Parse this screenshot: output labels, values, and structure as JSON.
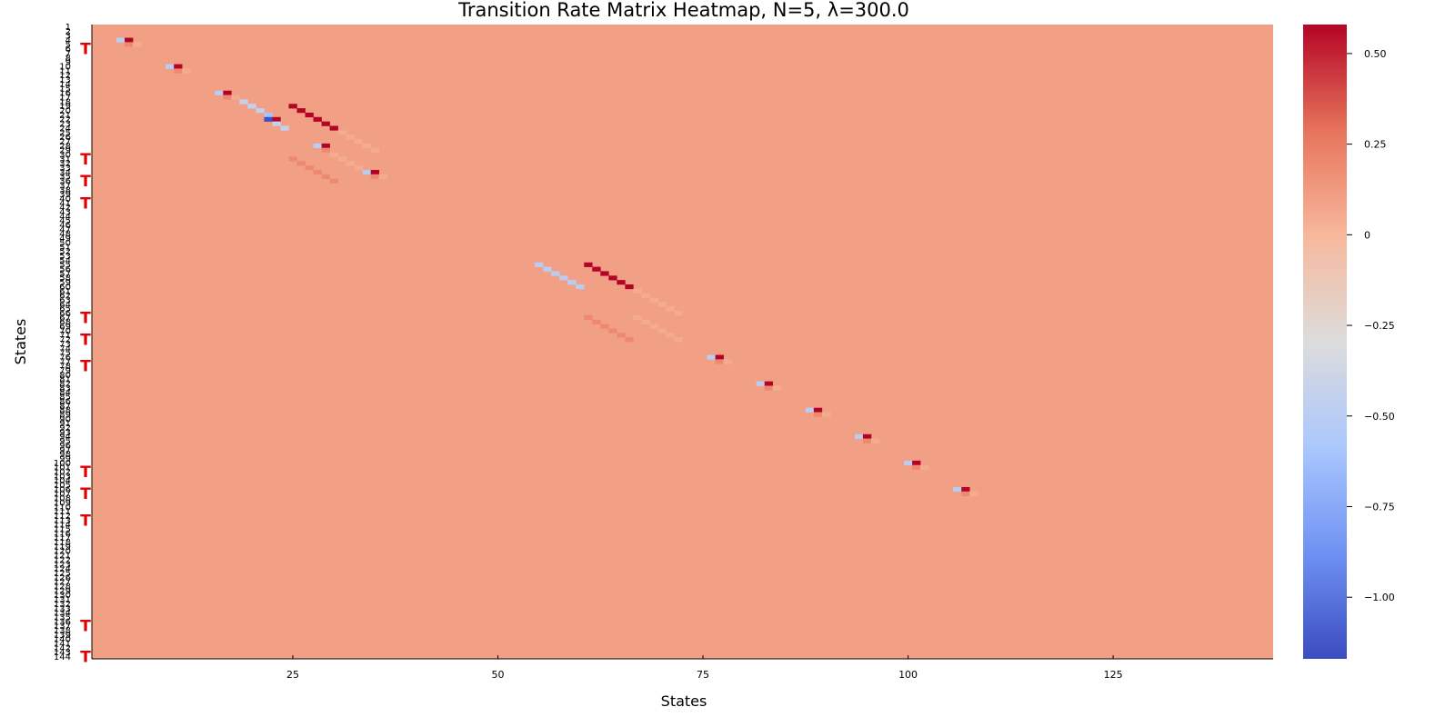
{
  "chart_data": {
    "type": "heatmap",
    "title": "Transition Rate Matrix Heatmap, N=5, λ=300.0",
    "xlabel": "States",
    "ylabel": "States",
    "n_states": 144,
    "xlim": [
      1,
      144
    ],
    "x_ticks": [
      25,
      50,
      75,
      100,
      125
    ],
    "y_ticks_all_states": true,
    "background_value": 0.1,
    "colorbar": {
      "range": [
        -1.17,
        0.58
      ],
      "ticks": [
        0.5,
        0.25,
        0,
        -0.25,
        -0.5,
        -0.75,
        -1.0
      ],
      "tick_labels": [
        "0.50",
        "0.25",
        "0",
        "−0.25",
        "−0.50",
        "−0.75",
        "−1.00"
      ],
      "colormap": "coolwarm",
      "stops": [
        "#3b4cc0",
        "#6f92f3",
        "#aac7fd",
        "#dddcdc",
        "#f7b89c",
        "#e7745b",
        "#b40426"
      ]
    },
    "cells": [
      [
        4,
        4,
        -0.5
      ],
      [
        4,
        5,
        0.58
      ],
      [
        5,
        5,
        0.2
      ],
      [
        5,
        6,
        0.05
      ],
      [
        10,
        10,
        -0.5
      ],
      [
        10,
        11,
        0.58
      ],
      [
        11,
        11,
        0.2
      ],
      [
        11,
        12,
        0.05
      ],
      [
        16,
        16,
        -0.5
      ],
      [
        16,
        17,
        0.58
      ],
      [
        17,
        17,
        0.2
      ],
      [
        17,
        18,
        0.05
      ],
      [
        18,
        19,
        -0.45
      ],
      [
        19,
        20,
        -0.45
      ],
      [
        20,
        21,
        -0.45
      ],
      [
        21,
        22,
        -0.6
      ],
      [
        22,
        23,
        -0.6
      ],
      [
        19,
        25,
        0.58
      ],
      [
        20,
        26,
        0.58
      ],
      [
        21,
        27,
        0.58
      ],
      [
        22,
        28,
        0.58
      ],
      [
        23,
        29,
        0.58
      ],
      [
        24,
        30,
        0.58
      ],
      [
        22,
        22,
        -1.15
      ],
      [
        22,
        23,
        0.58
      ],
      [
        23,
        23,
        -0.45
      ],
      [
        24,
        24,
        -0.45
      ],
      [
        25,
        31,
        0.05
      ],
      [
        26,
        32,
        0.05
      ],
      [
        27,
        33,
        0.05
      ],
      [
        28,
        34,
        0.05
      ],
      [
        29,
        35,
        0.05
      ],
      [
        28,
        28,
        -0.5
      ],
      [
        28,
        29,
        0.58
      ],
      [
        29,
        29,
        0.2
      ],
      [
        30,
        30,
        0.05
      ],
      [
        31,
        31,
        0.05
      ],
      [
        32,
        32,
        0.05
      ],
      [
        33,
        33,
        0.05
      ],
      [
        31,
        25,
        0.2
      ],
      [
        32,
        26,
        0.2
      ],
      [
        33,
        27,
        0.2
      ],
      [
        34,
        28,
        0.2
      ],
      [
        35,
        29,
        0.2
      ],
      [
        36,
        30,
        0.2
      ],
      [
        34,
        34,
        -0.5
      ],
      [
        34,
        35,
        0.58
      ],
      [
        35,
        35,
        0.2
      ],
      [
        35,
        36,
        0.05
      ],
      [
        55,
        55,
        -0.5
      ],
      [
        56,
        56,
        -0.5
      ],
      [
        57,
        57,
        -0.5
      ],
      [
        58,
        58,
        -0.5
      ],
      [
        59,
        59,
        -0.5
      ],
      [
        60,
        60,
        -0.5
      ],
      [
        55,
        61,
        0.58
      ],
      [
        56,
        62,
        0.58
      ],
      [
        57,
        63,
        0.58
      ],
      [
        58,
        64,
        0.58
      ],
      [
        59,
        65,
        0.58
      ],
      [
        60,
        66,
        0.58
      ],
      [
        61,
        67,
        0.05
      ],
      [
        62,
        68,
        0.05
      ],
      [
        63,
        69,
        0.05
      ],
      [
        64,
        70,
        0.05
      ],
      [
        65,
        71,
        0.05
      ],
      [
        66,
        72,
        0.05
      ],
      [
        67,
        61,
        0.2
      ],
      [
        68,
        62,
        0.2
      ],
      [
        69,
        63,
        0.2
      ],
      [
        70,
        64,
        0.2
      ],
      [
        71,
        65,
        0.2
      ],
      [
        72,
        66,
        0.2
      ],
      [
        67,
        67,
        0.05
      ],
      [
        68,
        68,
        0.05
      ],
      [
        69,
        69,
        0.05
      ],
      [
        70,
        70,
        0.05
      ],
      [
        71,
        71,
        0.05
      ],
      [
        72,
        72,
        0.05
      ],
      [
        76,
        76,
        -0.5
      ],
      [
        76,
        77,
        0.58
      ],
      [
        77,
        77,
        0.2
      ],
      [
        77,
        78,
        0.05
      ],
      [
        82,
        82,
        -0.5
      ],
      [
        82,
        83,
        0.58
      ],
      [
        83,
        83,
        0.2
      ],
      [
        83,
        84,
        0.05
      ],
      [
        88,
        88,
        -0.5
      ],
      [
        88,
        89,
        0.58
      ],
      [
        89,
        89,
        0.2
      ],
      [
        89,
        90,
        0.05
      ],
      [
        94,
        94,
        -0.5
      ],
      [
        94,
        95,
        0.58
      ],
      [
        95,
        95,
        0.2
      ],
      [
        95,
        96,
        0.05
      ],
      [
        100,
        100,
        -0.5
      ],
      [
        100,
        101,
        0.58
      ],
      [
        101,
        101,
        0.2
      ],
      [
        101,
        102,
        0.05
      ],
      [
        106,
        106,
        -0.5
      ],
      [
        106,
        107,
        0.58
      ],
      [
        107,
        107,
        0.2
      ],
      [
        107,
        108,
        0.05
      ]
    ],
    "row_markers": [
      6,
      31,
      36,
      41,
      67,
      72,
      78,
      102,
      107,
      113,
      137,
      144
    ],
    "marker_symbol": "T"
  }
}
